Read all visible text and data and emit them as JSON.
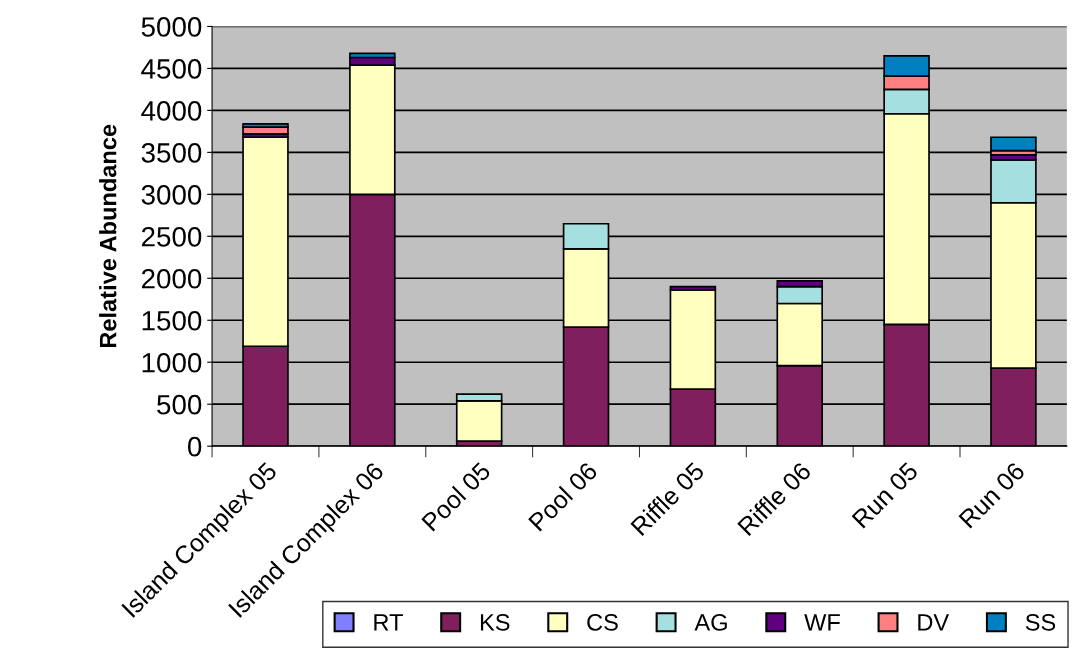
{
  "chart_data": {
    "type": "bar",
    "stacked": true,
    "ylabel": "Relative Abundance",
    "categories": [
      "Island Complex 05",
      "Island Complex 06",
      "Pool 05",
      "Pool 06",
      "Riffle 05",
      "Riffle 06",
      "Run 05",
      "Run 06"
    ],
    "series": [
      {
        "name": "RT",
        "color": "#8080ff",
        "values": [
          0,
          0,
          0,
          0,
          0,
          0,
          0,
          0
        ]
      },
      {
        "name": "KS",
        "color": "#7f1f5e",
        "values": [
          1190,
          3000,
          60,
          1420,
          680,
          960,
          1450,
          930
        ]
      },
      {
        "name": "CS",
        "color": "#ffffc0",
        "values": [
          2490,
          1540,
          480,
          930,
          1180,
          740,
          2510,
          1970
        ]
      },
      {
        "name": "AG",
        "color": "#a6dfe0",
        "values": [
          0,
          0,
          80,
          300,
          0,
          200,
          290,
          510
        ]
      },
      {
        "name": "WF",
        "color": "#600080",
        "values": [
          40,
          90,
          0,
          0,
          40,
          70,
          0,
          60
        ]
      },
      {
        "name": "DV",
        "color": "#ff8080",
        "values": [
          80,
          0,
          0,
          0,
          0,
          0,
          160,
          50
        ]
      },
      {
        "name": "SS",
        "color": "#0080c0",
        "values": [
          40,
          50,
          0,
          0,
          0,
          0,
          240,
          160
        ]
      }
    ],
    "ylim": [
      0,
      5000
    ],
    "yticks": [
      0,
      500,
      1000,
      1500,
      2000,
      2500,
      3000,
      3500,
      4000,
      4500,
      5000
    ],
    "grid": "y",
    "legend": "bottom right"
  }
}
